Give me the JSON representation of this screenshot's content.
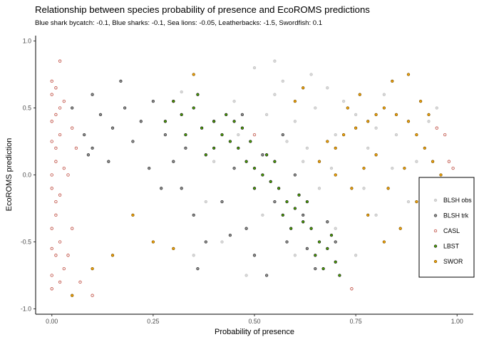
{
  "title": "Relationship between species probability of presence and EcoROMS predictions",
  "subtitle": "Blue shark bycatch: -0.1, Blue sharks: -0.1, Sea lions: -0.05, Leatherbacks: -1.5, Swordfish: 0.1",
  "chart_data": {
    "type": "scatter",
    "xlabel": "Probability of presence",
    "ylabel": "EcoROMS prediction",
    "xlim": [
      -0.04,
      1.04
    ],
    "ylim": [
      -1.04,
      1.04
    ],
    "x_ticks": [
      0,
      0.25,
      0.5,
      0.75,
      1
    ],
    "x_tick_labels": [
      "0.00",
      "0.25",
      "0.50",
      "0.75",
      "1.00"
    ],
    "y_ticks": [
      -1,
      -0.5,
      0,
      0.5,
      1
    ],
    "y_tick_labels": [
      "-1.0",
      "-0.5",
      "0.0",
      "0.5",
      "1.0"
    ],
    "grid": false,
    "legend_position": "right",
    "series": [
      {
        "name": "BLSH obs",
        "color": "#bfbfbf",
        "fill": "#d9d9d9",
        "points": [
          [
            0.32,
            0.62
          ],
          [
            0.45,
            0.55
          ],
          [
            0.55,
            0.6
          ],
          [
            0.6,
            0.4
          ],
          [
            0.65,
            0.5
          ],
          [
            0.7,
            0.3
          ],
          [
            0.72,
            0.55
          ],
          [
            0.75,
            0.45
          ],
          [
            0.78,
            0.2
          ],
          [
            0.8,
            0.35
          ],
          [
            0.62,
            0.1
          ],
          [
            0.58,
            0.25
          ],
          [
            0.5,
            0.8
          ],
          [
            0.55,
            0.85
          ],
          [
            0.68,
            0.65
          ],
          [
            0.82,
            0.6
          ],
          [
            0.85,
            0.3
          ],
          [
            0.88,
            -0.2
          ],
          [
            0.9,
            0.1
          ],
          [
            0.7,
            -0.4
          ],
          [
            0.66,
            -0.1
          ],
          [
            0.6,
            -0.6
          ],
          [
            0.52,
            -0.3
          ],
          [
            0.48,
            -0.75
          ],
          [
            0.42,
            -0.5
          ],
          [
            0.38,
            -0.2
          ],
          [
            0.4,
            0.1
          ],
          [
            0.35,
            -0.6
          ],
          [
            0.75,
            -0.6
          ],
          [
            0.8,
            -0.3
          ],
          [
            0.93,
            0.4
          ],
          [
            0.95,
            0.5
          ],
          [
            0.84,
            0.05
          ],
          [
            0.77,
            -0.1
          ],
          [
            0.64,
            0.75
          ],
          [
            0.57,
            0.7
          ],
          [
            0.53,
            0.45
          ],
          [
            0.46,
            0.3
          ],
          [
            0.63,
            0.2
          ],
          [
            0.69,
            0.05
          ]
        ]
      },
      {
        "name": "BLSH trk",
        "color": "#333333",
        "fill": "#8c8c8c",
        "points": [
          [
            0.05,
            0.5
          ],
          [
            0.08,
            0.3
          ],
          [
            0.1,
            0.2
          ],
          [
            0.12,
            0.45
          ],
          [
            0.15,
            0.35
          ],
          [
            0.18,
            0.5
          ],
          [
            0.2,
            0.25
          ],
          [
            0.22,
            0.4
          ],
          [
            0.25,
            0.55
          ],
          [
            0.28,
            0.3
          ],
          [
            0.3,
            0.1
          ],
          [
            0.32,
            -0.1
          ],
          [
            0.35,
            -0.3
          ],
          [
            0.38,
            -0.5
          ],
          [
            0.4,
            0.4
          ],
          [
            0.42,
            -0.2
          ],
          [
            0.45,
            0.05
          ],
          [
            0.48,
            -0.4
          ],
          [
            0.5,
            -0.6
          ],
          [
            0.52,
            0.15
          ],
          [
            0.55,
            -0.2
          ],
          [
            0.58,
            -0.5
          ],
          [
            0.6,
            0.0
          ],
          [
            0.62,
            -0.3
          ],
          [
            0.65,
            -0.7
          ],
          [
            0.7,
            -0.5
          ],
          [
            0.1,
            0.6
          ],
          [
            0.14,
            0.1
          ],
          [
            0.17,
            0.7
          ],
          [
            0.24,
            0.05
          ],
          [
            0.27,
            -0.1
          ],
          [
            0.33,
            0.2
          ],
          [
            0.36,
            -0.7
          ],
          [
            0.44,
            -0.45
          ],
          [
            0.47,
            0.45
          ],
          [
            0.53,
            -0.75
          ],
          [
            0.57,
            0.3
          ],
          [
            0.63,
            -0.55
          ],
          [
            0.68,
            -0.35
          ],
          [
            0.09,
            0.15
          ]
        ]
      },
      {
        "name": "CASL",
        "color": "#c0392b",
        "fill": "#f2f2f2",
        "points": [
          [
            0.0,
            0.6
          ],
          [
            0.0,
            0.4
          ],
          [
            0.01,
            0.2
          ],
          [
            0.0,
            0.0
          ],
          [
            0.01,
            -0.2
          ],
          [
            0.0,
            -0.4
          ],
          [
            0.01,
            -0.6
          ],
          [
            0.0,
            -0.75
          ],
          [
            0.02,
            0.5
          ],
          [
            0.02,
            -0.5
          ],
          [
            0.0,
            0.7
          ],
          [
            0.01,
            0.1
          ],
          [
            0.0,
            -0.1
          ],
          [
            0.02,
            0.3
          ],
          [
            0.01,
            -0.3
          ],
          [
            0.03,
            -0.7
          ],
          [
            0.0,
            -0.85
          ],
          [
            0.04,
            0.0
          ],
          [
            0.03,
            0.55
          ],
          [
            0.05,
            -0.4
          ],
          [
            0.06,
            0.2
          ],
          [
            0.01,
            0.65
          ],
          [
            0.02,
            -0.15
          ],
          [
            0.0,
            0.25
          ],
          [
            0.04,
            -0.6
          ],
          [
            0.07,
            -0.8
          ],
          [
            0.1,
            -0.9
          ],
          [
            0.3,
            0.55
          ],
          [
            0.5,
            0.3
          ],
          [
            0.95,
            0.35
          ],
          [
            0.98,
            0.1
          ],
          [
            0.99,
            0.05
          ],
          [
            0.97,
            0.3
          ],
          [
            0.74,
            -0.85
          ],
          [
            0.02,
            0.85
          ],
          [
            0.0,
            -0.55
          ],
          [
            0.01,
            0.45
          ],
          [
            0.03,
            0.05
          ],
          [
            0.02,
            -0.8
          ],
          [
            0.05,
            0.35
          ]
        ]
      },
      {
        "name": "LBST",
        "color": "#1a1a1a",
        "fill": "#4aa300",
        "points": [
          [
            0.3,
            0.55
          ],
          [
            0.32,
            0.45
          ],
          [
            0.35,
            0.5
          ],
          [
            0.37,
            0.35
          ],
          [
            0.4,
            0.4
          ],
          [
            0.42,
            0.3
          ],
          [
            0.44,
            0.25
          ],
          [
            0.46,
            0.2
          ],
          [
            0.48,
            0.1
          ],
          [
            0.5,
            0.05
          ],
          [
            0.52,
            0.0
          ],
          [
            0.54,
            -0.05
          ],
          [
            0.56,
            -0.1
          ],
          [
            0.58,
            -0.2
          ],
          [
            0.6,
            -0.25
          ],
          [
            0.62,
            -0.35
          ],
          [
            0.64,
            -0.4
          ],
          [
            0.66,
            -0.5
          ],
          [
            0.68,
            -0.55
          ],
          [
            0.7,
            -0.65
          ],
          [
            0.36,
            0.6
          ],
          [
            0.4,
            0.2
          ],
          [
            0.43,
            0.45
          ],
          [
            0.47,
            0.35
          ],
          [
            0.5,
            -0.1
          ],
          [
            0.53,
            0.15
          ],
          [
            0.57,
            -0.3
          ],
          [
            0.61,
            -0.15
          ],
          [
            0.65,
            -0.6
          ],
          [
            0.69,
            -0.45
          ],
          [
            0.28,
            0.4
          ],
          [
            0.33,
            0.3
          ],
          [
            0.38,
            0.15
          ],
          [
            0.45,
            0.4
          ],
          [
            0.49,
            0.25
          ],
          [
            0.55,
            0.1
          ],
          [
            0.59,
            -0.4
          ],
          [
            0.63,
            -0.2
          ],
          [
            0.67,
            -0.7
          ],
          [
            0.71,
            -0.75
          ]
        ]
      },
      {
        "name": "SWOR",
        "color": "#7a5200",
        "fill": "#f0a20a",
        "points": [
          [
            0.7,
            0.2
          ],
          [
            0.72,
            0.3
          ],
          [
            0.75,
            0.35
          ],
          [
            0.78,
            0.4
          ],
          [
            0.8,
            0.45
          ],
          [
            0.82,
            0.5
          ],
          [
            0.85,
            0.45
          ],
          [
            0.88,
            0.4
          ],
          [
            0.9,
            0.3
          ],
          [
            0.92,
            0.2
          ],
          [
            0.94,
            0.1
          ],
          [
            0.96,
            0.0
          ],
          [
            0.9,
            -0.2
          ],
          [
            0.86,
            -0.4
          ],
          [
            0.82,
            -0.5
          ],
          [
            0.78,
            -0.3
          ],
          [
            0.74,
            -0.1
          ],
          [
            0.7,
            0.0
          ],
          [
            0.68,
            0.25
          ],
          [
            0.66,
            0.1
          ],
          [
            0.76,
            0.6
          ],
          [
            0.84,
            0.7
          ],
          [
            0.88,
            0.75
          ],
          [
            0.8,
            0.15
          ],
          [
            0.83,
            -0.1
          ],
          [
            0.87,
            0.05
          ],
          [
            0.91,
            0.55
          ],
          [
            0.93,
            0.45
          ],
          [
            0.77,
            0.05
          ],
          [
            0.73,
            0.5
          ],
          [
            0.2,
            -0.3
          ],
          [
            0.25,
            -0.5
          ],
          [
            0.15,
            -0.6
          ],
          [
            0.3,
            -0.55
          ],
          [
            0.05,
            -0.9
          ],
          [
            0.1,
            -0.7
          ],
          [
            0.35,
            0.75
          ],
          [
            0.62,
            0.65
          ],
          [
            0.95,
            -0.3
          ],
          [
            0.6,
            0.55
          ]
        ]
      }
    ]
  }
}
